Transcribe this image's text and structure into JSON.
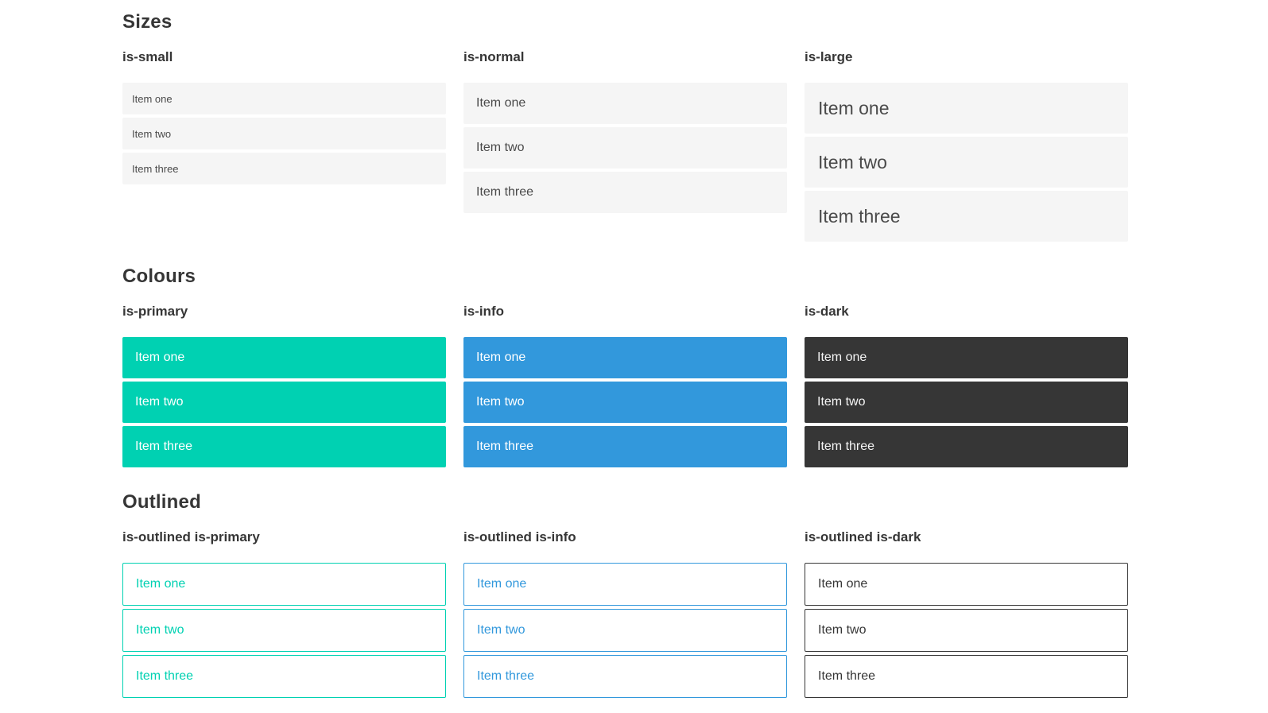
{
  "sections": [
    {
      "title": "Sizes",
      "groups": [
        {
          "label": "is-small",
          "items": [
            "Item one",
            "Item two",
            "Item three"
          ]
        },
        {
          "label": "is-normal",
          "items": [
            "Item one",
            "Item two",
            "Item three"
          ]
        },
        {
          "label": "is-large",
          "items": [
            "Item one",
            "Item two",
            "Item three"
          ]
        }
      ]
    },
    {
      "title": "Colours",
      "groups": [
        {
          "label": "is-primary",
          "items": [
            "Item one",
            "Item two",
            "Item three"
          ]
        },
        {
          "label": "is-info",
          "items": [
            "Item one",
            "Item two",
            "Item three"
          ]
        },
        {
          "label": "is-dark",
          "items": [
            "Item one",
            "Item two",
            "Item three"
          ]
        }
      ]
    },
    {
      "title": "Outlined",
      "groups": [
        {
          "label": "is-outlined is-primary",
          "items": [
            "Item one",
            "Item two",
            "Item three"
          ]
        },
        {
          "label": "is-outlined is-info",
          "items": [
            "Item one",
            "Item two",
            "Item three"
          ]
        },
        {
          "label": "is-outlined is-dark",
          "items": [
            "Item one",
            "Item two",
            "Item three"
          ]
        }
      ]
    }
  ],
  "colors": {
    "primary": "#00d1b2",
    "info": "#3298dc",
    "dark": "#363636",
    "item_background": "#f5f5f5",
    "heading_text": "#363636",
    "item_text": "#4a4a4a",
    "text_on_color": "#ffffff"
  }
}
